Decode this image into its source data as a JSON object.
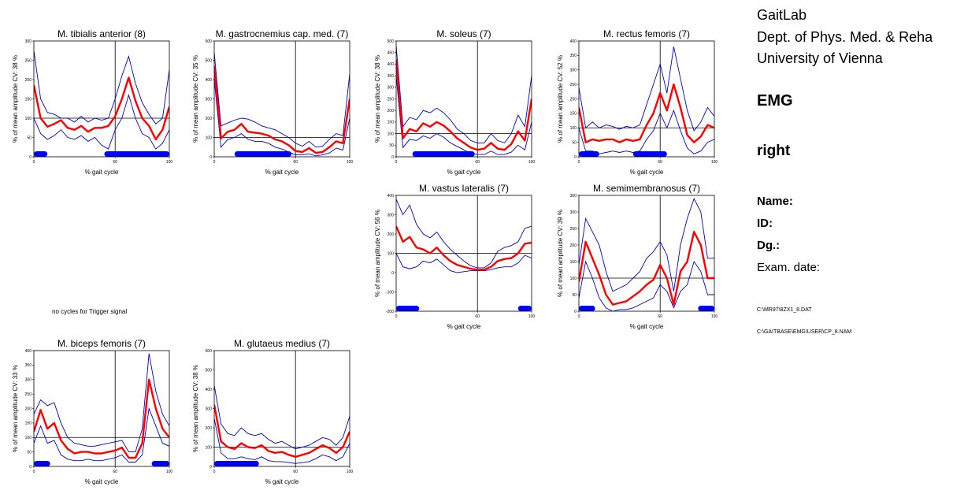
{
  "header": {
    "lab_lines": [
      "GaitLab",
      "Dept. of Phys. Med. & Reha",
      "University of Vienna"
    ],
    "section": "EMG",
    "side": "right",
    "fields": {
      "name": "Name:",
      "id": "ID:",
      "dg": "Dg.:",
      "exam_date": "Exam. date:"
    },
    "files": [
      "C:\\MR97\\8ZX1_8.DAT",
      "C:\\GAITBASE\\EMG\\USER\\CP_8.NAM"
    ]
  },
  "missing_note": "no cycles for Trigger signal",
  "colors": {
    "mean": "#ff0000",
    "band": "#0000cc",
    "activity": "#0000ff",
    "frame": "#000000"
  },
  "chart_data": [
    {
      "type": "line",
      "title": "M. tibialis anterior (8)",
      "xlabel": "% gait cycle",
      "ylabel": "% of mean amplitude  CV: 38 %",
      "xlim": [
        0,
        100
      ],
      "ylim": [
        0,
        300
      ],
      "xticks": [
        "0",
        "60",
        "100"
      ],
      "yticks": [
        "0",
        "50",
        "100",
        "150",
        "200",
        "250",
        "300"
      ],
      "reference_lines": {
        "x": 60,
        "y": 100
      },
      "x": [
        0,
        5,
        10,
        15,
        20,
        25,
        30,
        35,
        40,
        45,
        50,
        55,
        60,
        65,
        70,
        75,
        80,
        85,
        90,
        95,
        100
      ],
      "series": [
        {
          "values": [
            185,
            100,
            78,
            85,
            95,
            75,
            70,
            80,
            65,
            75,
            75,
            80,
            105,
            150,
            205,
            145,
            100,
            80,
            45,
            70,
            130
          ]
        },
        {
          "values": [
            275,
            150,
            115,
            110,
            100,
            100,
            90,
            105,
            90,
            100,
            95,
            100,
            150,
            210,
            260,
            190,
            140,
            110,
            85,
            100,
            225
          ]
        },
        {
          "values": [
            100,
            60,
            45,
            55,
            70,
            50,
            45,
            55,
            40,
            50,
            30,
            20,
            70,
            100,
            160,
            100,
            60,
            50,
            20,
            35,
            70
          ]
        }
      ],
      "activity": [
        [
          0,
          10
        ],
        [
          52,
          100
        ]
      ]
    },
    {
      "type": "line",
      "title": "M. gastrocnemius cap. med. (7)",
      "xlabel": "% gait cycle",
      "ylabel": "% of mean amplitude  CV: 35 %",
      "xlim": [
        0,
        100
      ],
      "ylim": [
        0,
        600
      ],
      "xticks": [
        "0",
        "60",
        "100"
      ],
      "yticks": [
        "0",
        "100",
        "200",
        "300",
        "400",
        "500",
        "600"
      ],
      "reference_lines": {
        "x": 60,
        "y": 100
      },
      "x": [
        0,
        5,
        10,
        15,
        20,
        25,
        30,
        35,
        40,
        45,
        50,
        55,
        60,
        65,
        70,
        75,
        80,
        85,
        90,
        95,
        100
      ],
      "series": [
        {
          "values": [
            470,
            95,
            130,
            140,
            170,
            130,
            125,
            120,
            110,
            90,
            80,
            60,
            30,
            25,
            45,
            20,
            25,
            50,
            80,
            70,
            300
          ]
        },
        {
          "values": [
            540,
            160,
            175,
            190,
            200,
            195,
            180,
            160,
            150,
            140,
            120,
            100,
            70,
            55,
            80,
            50,
            55,
            90,
            120,
            110,
            430
          ]
        },
        {
          "values": [
            400,
            50,
            90,
            100,
            120,
            90,
            80,
            80,
            70,
            50,
            40,
            25,
            10,
            10,
            15,
            5,
            10,
            20,
            45,
            35,
            200
          ]
        }
      ],
      "activity": [
        [
          15,
          57
        ]
      ]
    },
    {
      "type": "line",
      "title": "M. soleus (7)",
      "xlabel": "% gait cycle",
      "ylabel": "% of mean amplitude  CV: 38 %",
      "xlim": [
        0,
        100
      ],
      "ylim": [
        0,
        500
      ],
      "xticks": [
        "0",
        "60",
        "100"
      ],
      "yticks": [
        "0",
        "50",
        "100",
        "150",
        "200",
        "250",
        "300",
        "350",
        "400",
        "450",
        "500"
      ],
      "reference_lines": {
        "x": 60,
        "y": 100
      },
      "x": [
        0,
        5,
        10,
        15,
        20,
        25,
        30,
        35,
        40,
        45,
        50,
        55,
        60,
        65,
        70,
        75,
        80,
        85,
        90,
        95,
        100
      ],
      "series": [
        {
          "values": [
            420,
            80,
            120,
            110,
            145,
            130,
            150,
            135,
            110,
            80,
            60,
            40,
            30,
            35,
            60,
            35,
            30,
            55,
            110,
            70,
            250
          ]
        },
        {
          "values": [
            480,
            130,
            170,
            160,
            200,
            190,
            210,
            190,
            160,
            120,
            100,
            70,
            60,
            60,
            100,
            70,
            60,
            100,
            180,
            130,
            350
          ]
        },
        {
          "values": [
            350,
            40,
            75,
            70,
            90,
            80,
            100,
            85,
            60,
            45,
            30,
            15,
            10,
            10,
            25,
            10,
            10,
            20,
            50,
            30,
            150
          ]
        }
      ],
      "activity": [
        [
          12,
          58
        ]
      ]
    },
    {
      "type": "line",
      "title": "M. rectus femoris (7)",
      "xlabel": "% gait cycle",
      "ylabel": "% of mean amplitude  CV: 52 %",
      "xlim": [
        0,
        100
      ],
      "ylim": [
        0,
        400
      ],
      "xticks": [
        "0",
        "60",
        "100"
      ],
      "yticks": [
        "0",
        "50",
        "100",
        "150",
        "200",
        "250",
        "300",
        "350",
        "400"
      ],
      "reference_lines": {
        "x": 60,
        "y": 100
      },
      "x": [
        0,
        5,
        10,
        15,
        20,
        25,
        30,
        35,
        40,
        45,
        50,
        55,
        60,
        65,
        70,
        75,
        80,
        85,
        90,
        95,
        100
      ],
      "series": [
        {
          "values": [
            170,
            50,
            60,
            55,
            60,
            60,
            50,
            60,
            55,
            60,
            110,
            150,
            220,
            160,
            250,
            170,
            75,
            50,
            70,
            110,
            100
          ]
        },
        {
          "values": [
            240,
            100,
            120,
            100,
            110,
            105,
            95,
            105,
            100,
            110,
            180,
            250,
            320,
            220,
            380,
            270,
            160,
            90,
            120,
            170,
            140
          ]
        },
        {
          "values": [
            100,
            20,
            20,
            10,
            15,
            20,
            15,
            20,
            15,
            20,
            60,
            90,
            150,
            100,
            160,
            90,
            30,
            10,
            20,
            50,
            60
          ]
        }
      ],
      "activity": [
        [
          0,
          15
        ],
        [
          40,
          65
        ]
      ]
    },
    {
      "type": "line",
      "title": "M. vastus lateralis (7)",
      "xlabel": "% gait cycle",
      "ylabel": "% of mean amplitude  CV: 56 %",
      "xlim": [
        0,
        100
      ],
      "ylim": [
        -200,
        400
      ],
      "xticks": [
        "0",
        "60",
        "100"
      ],
      "yticks": [
        "-200",
        "-100",
        "0",
        "100",
        "200",
        "300",
        "400"
      ],
      "reference_lines": {
        "x": 60,
        "y": 100
      },
      "x": [
        0,
        5,
        10,
        15,
        20,
        25,
        30,
        35,
        40,
        45,
        50,
        55,
        60,
        65,
        70,
        75,
        80,
        85,
        90,
        95,
        100
      ],
      "series": [
        {
          "values": [
            240,
            160,
            185,
            130,
            120,
            100,
            130,
            90,
            60,
            40,
            30,
            20,
            15,
            15,
            30,
            60,
            70,
            75,
            100,
            150,
            155
          ]
        },
        {
          "values": [
            380,
            300,
            350,
            250,
            200,
            180,
            210,
            160,
            120,
            90,
            60,
            35,
            25,
            25,
            50,
            110,
            130,
            140,
            160,
            230,
            240
          ]
        },
        {
          "values": [
            100,
            30,
            20,
            30,
            60,
            50,
            70,
            40,
            10,
            0,
            5,
            10,
            10,
            10,
            15,
            25,
            30,
            30,
            50,
            90,
            75
          ]
        }
      ],
      "activity": [
        [
          0,
          17
        ],
        [
          90,
          100
        ]
      ]
    },
    {
      "type": "line",
      "title": "M. semimembranosus (7)",
      "xlabel": "% gait cycle",
      "ylabel": "% of mean amplitude  CV: 39 %",
      "xlim": [
        0,
        100
      ],
      "ylim": [
        0,
        350
      ],
      "xticks": [
        "0",
        "60",
        "100"
      ],
      "yticks": [
        "0",
        "50",
        "100",
        "150",
        "200",
        "250",
        "300",
        "350"
      ],
      "reference_lines": {
        "x": 60,
        "y": 100
      },
      "x": [
        0,
        5,
        10,
        15,
        20,
        25,
        30,
        35,
        40,
        45,
        50,
        55,
        60,
        65,
        70,
        75,
        80,
        85,
        90,
        95,
        100
      ],
      "series": [
        {
          "values": [
            90,
            210,
            160,
            110,
            50,
            20,
            25,
            30,
            45,
            60,
            80,
            95,
            140,
            100,
            20,
            120,
            150,
            240,
            200,
            100,
            100
          ]
        },
        {
          "values": [
            140,
            280,
            240,
            200,
            120,
            60,
            70,
            80,
            100,
            120,
            160,
            180,
            210,
            170,
            60,
            200,
            280,
            340,
            300,
            160,
            160
          ]
        },
        {
          "values": [
            40,
            150,
            100,
            40,
            10,
            0,
            5,
            5,
            10,
            20,
            30,
            40,
            80,
            60,
            10,
            60,
            80,
            150,
            120,
            50,
            50
          ]
        }
      ],
      "activity": [
        [
          0,
          12
        ],
        [
          88,
          100
        ]
      ]
    },
    {
      "type": "line",
      "title": "M. biceps femoris (7)",
      "xlabel": "% gait cycle",
      "ylabel": "% of mean amplitude  CV: 33 %",
      "xlim": [
        0,
        100
      ],
      "ylim": [
        0,
        400
      ],
      "xticks": [
        "0",
        "60",
        "100"
      ],
      "yticks": [
        "0",
        "50",
        "100",
        "150",
        "200",
        "250",
        "300",
        "350",
        "400"
      ],
      "reference_lines": {
        "x": 60,
        "y": 100
      },
      "x": [
        0,
        5,
        10,
        15,
        20,
        25,
        30,
        35,
        40,
        45,
        50,
        55,
        60,
        65,
        70,
        75,
        80,
        85,
        90,
        95,
        100
      ],
      "series": [
        {
          "values": [
            120,
            195,
            130,
            150,
            90,
            60,
            45,
            50,
            50,
            45,
            45,
            50,
            55,
            65,
            30,
            30,
            80,
            300,
            200,
            130,
            100
          ]
        },
        {
          "values": [
            180,
            230,
            210,
            220,
            150,
            100,
            80,
            75,
            70,
            70,
            75,
            80,
            85,
            90,
            50,
            50,
            130,
            390,
            260,
            180,
            140
          ]
        },
        {
          "values": [
            80,
            140,
            80,
            90,
            40,
            25,
            20,
            20,
            25,
            20,
            20,
            25,
            30,
            40,
            15,
            15,
            40,
            200,
            140,
            80,
            70
          ]
        }
      ],
      "activity": [
        [
          0,
          12
        ],
        [
          87,
          100
        ]
      ]
    },
    {
      "type": "line",
      "title": "M. glutaeus medius (7)",
      "xlabel": "% gait cycle",
      "ylabel": "% of mean amplitude  CV: 38 %",
      "xlim": [
        0,
        100
      ],
      "ylim": [
        0,
        600
      ],
      "xticks": [
        "0",
        "60",
        "100"
      ],
      "yticks": [
        "0",
        "100",
        "200",
        "300",
        "400",
        "500",
        "600"
      ],
      "reference_lines": {
        "x": 60,
        "y": 100
      },
      "x": [
        0,
        5,
        10,
        15,
        20,
        25,
        30,
        35,
        40,
        45,
        50,
        55,
        60,
        65,
        70,
        75,
        80,
        85,
        90,
        95,
        100
      ],
      "series": [
        {
          "values": [
            320,
            130,
            100,
            90,
            120,
            100,
            95,
            110,
            80,
            70,
            75,
            60,
            50,
            60,
            70,
            90,
            110,
            95,
            70,
            100,
            180
          ]
        },
        {
          "values": [
            420,
            220,
            170,
            160,
            200,
            170,
            160,
            170,
            140,
            120,
            130,
            110,
            90,
            100,
            110,
            130,
            150,
            140,
            110,
            150,
            260
          ]
        },
        {
          "values": [
            250,
            70,
            40,
            40,
            50,
            40,
            35,
            50,
            30,
            25,
            25,
            20,
            15,
            20,
            25,
            40,
            60,
            50,
            30,
            50,
            120
          ]
        }
      ],
      "activity": [
        [
          0,
          33
        ]
      ]
    }
  ]
}
